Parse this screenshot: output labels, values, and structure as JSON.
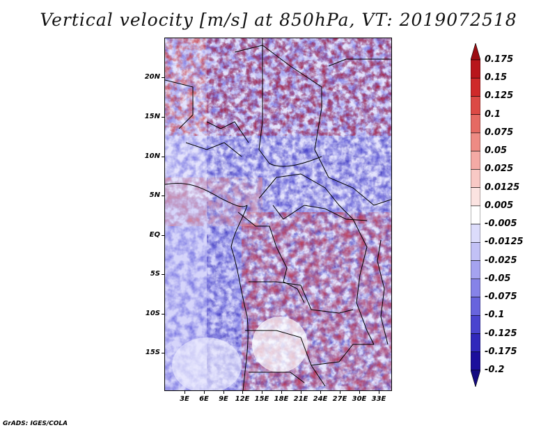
{
  "title": "Vertical velocity [m/s] at 850hPa, VT: 2019072518",
  "credit": "GrADS: IGES/COLA",
  "map": {
    "variable": "Vertical velocity",
    "units": "m/s",
    "level": "850hPa",
    "valid_time": "2019072518",
    "lat_labels": [
      "20N",
      "15N",
      "10N",
      "5N",
      "EQ",
      "5S",
      "10S",
      "15S"
    ],
    "lon_labels": [
      "3E",
      "6E",
      "9E",
      "12E",
      "15E",
      "18E",
      "21E",
      "24E",
      "27E",
      "30E",
      "33E"
    ]
  },
  "colorbar": {
    "labels": [
      "0.175",
      "0.15",
      "0.125",
      "0.1",
      "0.075",
      "0.05",
      "0.025",
      "0.0125",
      "0.005",
      "-0.005",
      "-0.0125",
      "-0.025",
      "-0.05",
      "-0.075",
      "-0.1",
      "-0.125",
      "-0.175",
      "-0.2"
    ],
    "colors": [
      "#9b0d12",
      "#b8161b",
      "#cf2a2a",
      "#dc4a45",
      "#e56a63",
      "#ee8b84",
      "#f4aaa5",
      "#f8c9c5",
      "#fbe3e1",
      "#ffffff",
      "#dcdcfb",
      "#c2c1f6",
      "#a5a3f0",
      "#8683e8",
      "#6864dd",
      "#4a44cf",
      "#3128bb",
      "#1c0f9c",
      "#140a80"
    ]
  }
}
